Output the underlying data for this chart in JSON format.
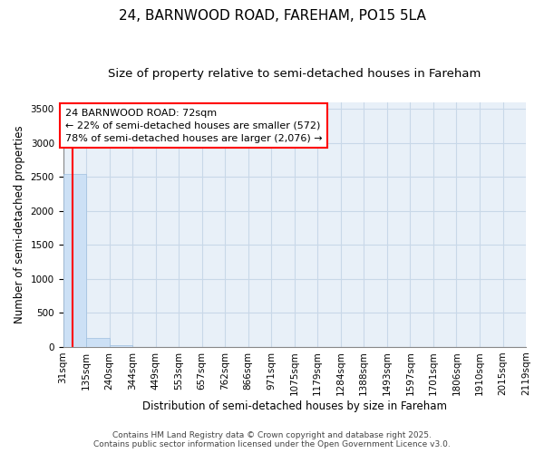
{
  "title_line1": "24, BARNWOOD ROAD, FAREHAM, PO15 5LA",
  "title_line2": "Size of property relative to semi-detached houses in Fareham",
  "xlabel": "Distribution of semi-detached houses by size in Fareham",
  "ylabel": "Number of semi-detached properties",
  "bar_color": "#cce0f5",
  "bar_edge_color": "#9fbfdf",
  "property_line_color": "red",
  "property_sqm": 72,
  "annotation_text": "24 BARNWOOD ROAD: 72sqm\n← 22% of semi-detached houses are smaller (572)\n78% of semi-detached houses are larger (2,076) →",
  "bin_edges": [
    31,
    135,
    240,
    344,
    449,
    553,
    657,
    762,
    866,
    971,
    1075,
    1179,
    1284,
    1388,
    1493,
    1597,
    1701,
    1806,
    1910,
    2015,
    2119
  ],
  "bin_labels": [
    "31sqm",
    "135sqm",
    "240sqm",
    "344sqm",
    "449sqm",
    "553sqm",
    "657sqm",
    "762sqm",
    "866sqm",
    "971sqm",
    "1075sqm",
    "1179sqm",
    "1284sqm",
    "1388sqm",
    "1493sqm",
    "1597sqm",
    "1701sqm",
    "1806sqm",
    "1910sqm",
    "2015sqm",
    "2119sqm"
  ],
  "bar_heights": [
    2550,
    130,
    30,
    0,
    0,
    0,
    0,
    0,
    0,
    0,
    0,
    0,
    0,
    0,
    0,
    0,
    0,
    0,
    0,
    0
  ],
  "ylim": [
    0,
    3600
  ],
  "yticks": [
    0,
    500,
    1000,
    1500,
    2000,
    2500,
    3000,
    3500
  ],
  "footer_line1": "Contains HM Land Registry data © Crown copyright and database right 2025.",
  "footer_line2": "Contains public sector information licensed under the Open Government Licence v3.0.",
  "background_color": "#ffffff",
  "plot_bg_color": "#e8f0f8",
  "grid_color": "#c8d8e8",
  "title_fontsize": 11,
  "subtitle_fontsize": 9.5,
  "axis_label_fontsize": 8.5,
  "tick_fontsize": 7.5,
  "footer_fontsize": 6.5,
  "annotation_fontsize": 8
}
